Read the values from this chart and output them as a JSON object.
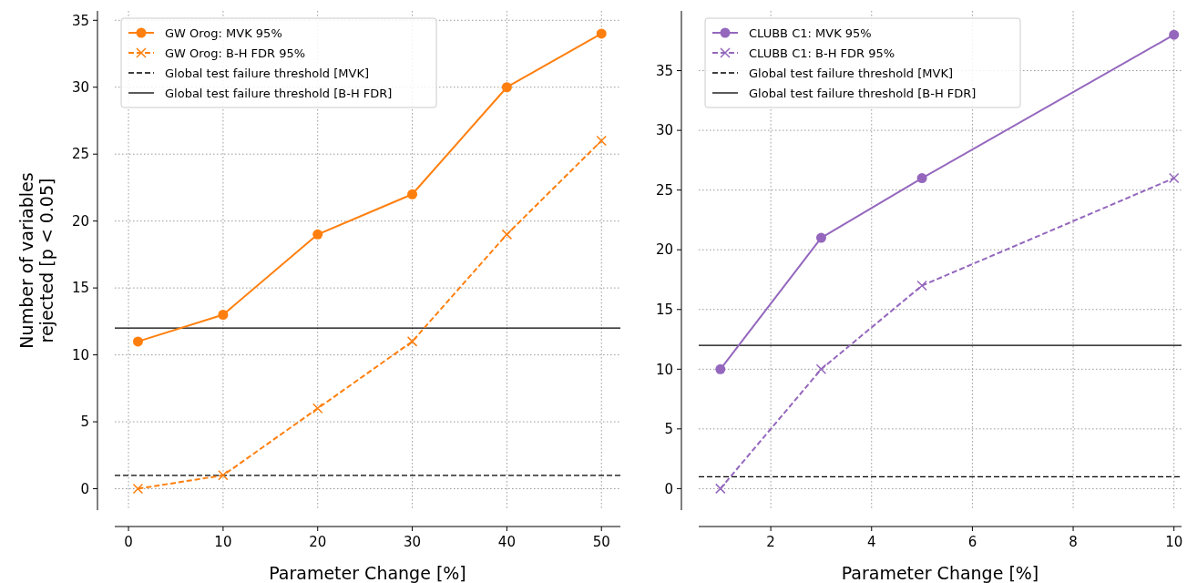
{
  "chart_data": [
    {
      "type": "line",
      "xlabel": "Parameter Change [%]",
      "ylabel": "Number of variables\nrejected [p < 0.05]",
      "x": [
        1,
        10,
        20,
        30,
        40,
        50
      ],
      "xlim": [
        -1.45,
        52
      ],
      "xticks": [
        0,
        10,
        20,
        30,
        40,
        50
      ],
      "ylim": [
        -1.6,
        35.7
      ],
      "yticks": [
        0,
        5,
        10,
        15,
        20,
        25,
        30,
        35
      ],
      "grid": true,
      "legend": "top left",
      "series": [
        {
          "name": "GW Orog: MVK 95%",
          "color": "#ff7f0e",
          "marker": "circle",
          "line_style": "solid",
          "values": [
            11,
            13,
            19,
            22,
            30,
            34
          ]
        },
        {
          "name": "GW Orog: B-H FDR 95%",
          "color": "#ff7f0e",
          "marker": "cross",
          "line_style": "dashed",
          "values": [
            0,
            1,
            6,
            11,
            19,
            26
          ]
        }
      ],
      "ref_lines": [
        {
          "axis": "y",
          "value": 1,
          "label": "Global test failure threshold [MVK]",
          "color": "#000000",
          "line_style": "dashed"
        },
        {
          "axis": "y",
          "value": 12,
          "label": "Global test failure threshold [B-H FDR]",
          "color": "#000000",
          "line_style": "solid"
        }
      ]
    },
    {
      "type": "line",
      "xlabel": "Parameter Change [%]",
      "x": [
        1,
        3,
        5,
        10
      ],
      "xlim": [
        0.57,
        10.15
      ],
      "xticks": [
        2,
        4,
        6,
        8,
        10
      ],
      "ylim": [
        -1.8,
        40
      ],
      "yticks": [
        0,
        5,
        10,
        15,
        20,
        25,
        30,
        35
      ],
      "grid": true,
      "legend": "top left",
      "series": [
        {
          "name": "CLUBB C1: MVK 95%",
          "color": "#9467bd",
          "marker": "circle",
          "line_style": "solid",
          "values": [
            10,
            21,
            26,
            38
          ]
        },
        {
          "name": "CLUBB C1: B-H FDR 95%",
          "color": "#9467bd",
          "marker": "cross",
          "line_style": "dashed",
          "values": [
            0,
            10,
            17,
            26
          ]
        }
      ],
      "ref_lines": [
        {
          "axis": "y",
          "value": 1,
          "label": "Global test failure threshold [MVK]",
          "color": "#000000",
          "line_style": "dashed"
        },
        {
          "axis": "y",
          "value": 12,
          "label": "Global test failure threshold [B-H FDR]",
          "color": "#000000",
          "line_style": "solid"
        }
      ]
    }
  ]
}
